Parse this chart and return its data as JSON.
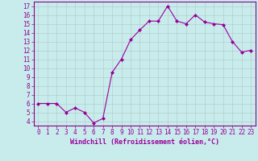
{
  "x": [
    0,
    1,
    2,
    3,
    4,
    5,
    6,
    7,
    8,
    9,
    10,
    11,
    12,
    13,
    14,
    15,
    16,
    17,
    18,
    19,
    20,
    21,
    22,
    23
  ],
  "y": [
    6,
    6,
    6,
    5,
    5.5,
    5,
    3.8,
    4.3,
    9.5,
    11,
    13.2,
    14.3,
    15.3,
    15.3,
    17,
    15.3,
    15,
    16,
    15.2,
    15,
    14.9,
    13,
    11.8,
    12
  ],
  "line_color": "#990099",
  "marker": "D",
  "marker_size": 2,
  "bg_color": "#c8ecec",
  "grid_color": "#b0c8c8",
  "xlabel": "Windchill (Refroidissement éolien,°C)",
  "xlim": [
    -0.5,
    23.5
  ],
  "ylim": [
    3.5,
    17.5
  ],
  "xticks": [
    0,
    1,
    2,
    3,
    4,
    5,
    6,
    7,
    8,
    9,
    10,
    11,
    12,
    13,
    14,
    15,
    16,
    17,
    18,
    19,
    20,
    21,
    22,
    23
  ],
  "yticks": [
    4,
    5,
    6,
    7,
    8,
    9,
    10,
    11,
    12,
    13,
    14,
    15,
    16,
    17
  ],
  "tick_label_fontsize": 5.5,
  "xlabel_fontsize": 6,
  "spine_color": "#880088",
  "line_width": 0.8
}
